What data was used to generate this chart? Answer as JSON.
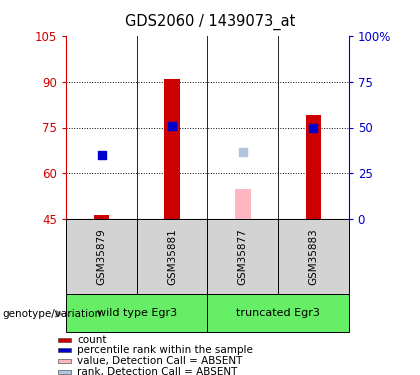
{
  "title": "GDS2060 / 1439073_at",
  "samples": [
    "GSM35879",
    "GSM35881",
    "GSM35877",
    "GSM35883"
  ],
  "bar_bottom": 45,
  "red_bars": [
    46.5,
    91.0,
    null,
    79.0
  ],
  "blue_dots": [
    66.0,
    75.5,
    null,
    75.0
  ],
  "pink_bars": [
    null,
    null,
    55.0,
    null
  ],
  "lightblue_dots": [
    null,
    null,
    67.0,
    null
  ],
  "ylim_left": [
    45,
    105
  ],
  "ylim_right": [
    0,
    100
  ],
  "yticks_left": [
    45,
    60,
    75,
    90,
    105
  ],
  "yticks_right": [
    0,
    25,
    50,
    75,
    100
  ],
  "yticklabels_right": [
    "0",
    "25",
    "50",
    "75",
    "100%"
  ],
  "grid_yticks": [
    60,
    75,
    90
  ],
  "left_color": "#cc0000",
  "right_color": "#0000cc",
  "bar_width": 0.22,
  "dot_size": 38,
  "sample_box_color": "#d3d3d3",
  "group_box_color": "#66ee66",
  "legend_items": [
    {
      "label": "count",
      "color": "#cc0000"
    },
    {
      "label": "percentile rank within the sample",
      "color": "#0000cc"
    },
    {
      "label": "value, Detection Call = ABSENT",
      "color": "#ffb6c1"
    },
    {
      "label": "rank, Detection Call = ABSENT",
      "color": "#b0c4de"
    }
  ],
  "group_label": "genotype/variation",
  "wt_label": "wild type Egr3",
  "trunc_label": "truncated Egr3"
}
